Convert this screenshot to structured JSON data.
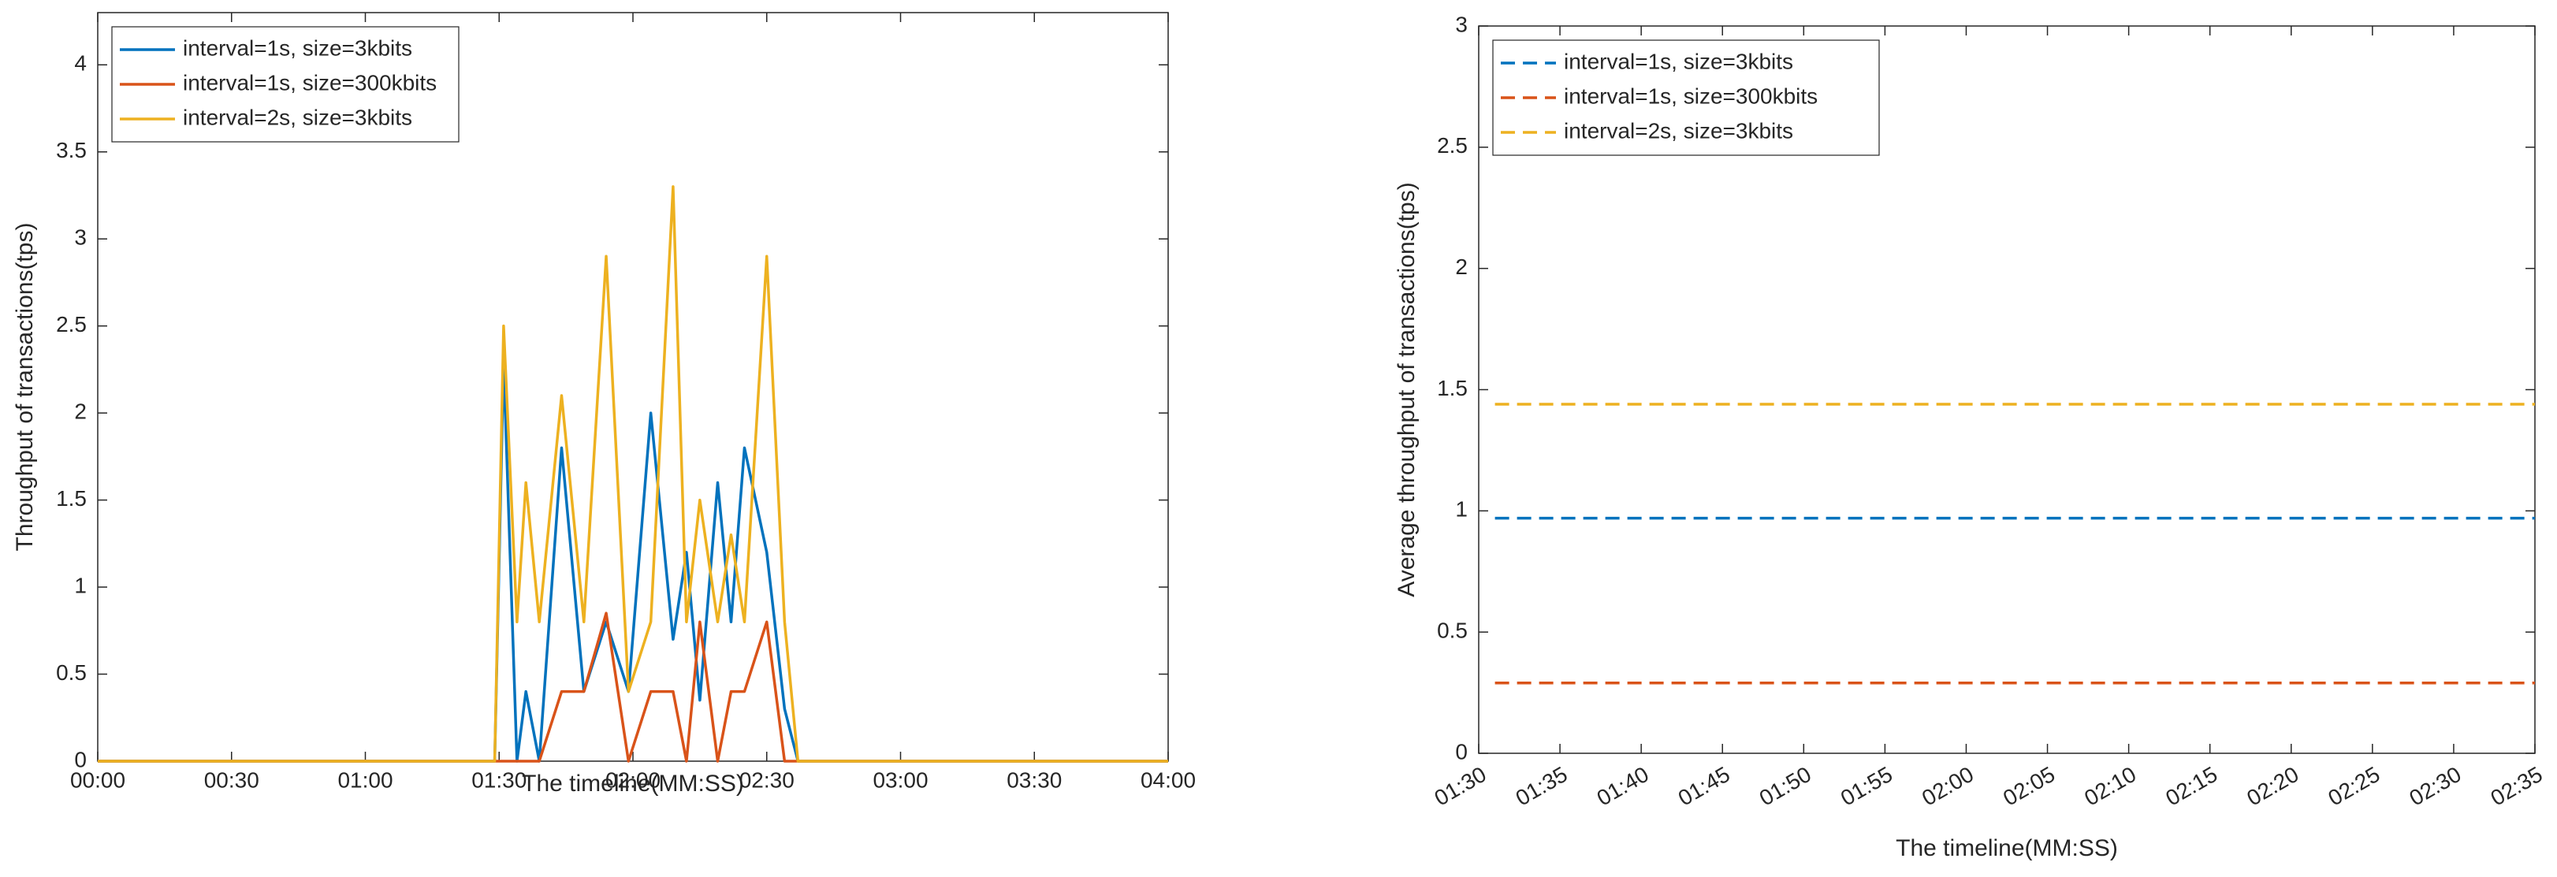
{
  "chart_data": [
    {
      "type": "line",
      "x_label": "The timeline(MM:SS)",
      "y_label": "Throughput of transactions(tps)",
      "x": [
        0,
        89,
        91,
        94,
        96,
        99,
        104,
        109,
        114,
        119,
        124,
        129,
        132,
        135,
        139,
        142,
        145,
        150,
        154,
        157,
        240
      ],
      "series": [
        {
          "name": "interval=1s, size=3kbits",
          "color": "#0072BD",
          "line_style": "solid",
          "values": [
            0,
            0,
            2.3,
            0,
            0.4,
            0,
            1.8,
            0.4,
            0.8,
            0.4,
            2.0,
            0.7,
            1.2,
            0.35,
            1.6,
            0.8,
            1.8,
            1.2,
            0.3,
            0,
            0
          ]
        },
        {
          "name": "interval=1s, size=300kbits",
          "color": "#D95319",
          "line_style": "solid",
          "values": [
            0,
            0,
            0,
            0,
            0,
            0,
            0.4,
            0.4,
            0.85,
            0,
            0.4,
            0.4,
            0,
            0.8,
            0,
            0.4,
            0.4,
            0.8,
            0,
            0,
            0
          ]
        },
        {
          "name": "interval=2s, size=3kbits",
          "color": "#EDB120",
          "line_style": "solid",
          "values": [
            0,
            0,
            2.5,
            0.8,
            1.6,
            0.8,
            2.1,
            0.8,
            2.9,
            0.4,
            0.8,
            3.3,
            0.8,
            1.5,
            0.8,
            1.3,
            0.8,
            2.9,
            0.8,
            0,
            0
          ]
        }
      ],
      "xlim": [
        0,
        240
      ],
      "xticks": [
        {
          "value": 0,
          "label": "00:00"
        },
        {
          "value": 30,
          "label": "00:30"
        },
        {
          "value": 60,
          "label": "01:00"
        },
        {
          "value": 90,
          "label": "01:30"
        },
        {
          "value": 120,
          "label": "02:00"
        },
        {
          "value": 150,
          "label": "02:30"
        },
        {
          "value": 180,
          "label": "03:00"
        },
        {
          "value": 210,
          "label": "03:30"
        },
        {
          "value": 240,
          "label": "04:00"
        }
      ],
      "ylim": [
        0,
        4.3
      ],
      "yticks": [
        0,
        0.5,
        1,
        1.5,
        2,
        2.5,
        3,
        3.5,
        4
      ],
      "legend": "upper left"
    },
    {
      "type": "line",
      "x_label": "The timeline(MM:SS)",
      "y_label": "Average throughput of transactions(tps)",
      "x": [
        91,
        155
      ],
      "series": [
        {
          "name": "interval=1s, size=3kbits",
          "color": "#0072BD",
          "line_style": "dashed",
          "values": [
            0.97,
            0.97
          ]
        },
        {
          "name": "interval=1s, size=300kbits",
          "color": "#D95319",
          "line_style": "dashed",
          "values": [
            0.29,
            0.29
          ]
        },
        {
          "name": "interval=2s, size=3kbits",
          "color": "#EDB120",
          "line_style": "dashed",
          "values": [
            1.44,
            1.44
          ]
        }
      ],
      "xlim": [
        90,
        155
      ],
      "xticks": [
        {
          "value": 90,
          "label": "01:30"
        },
        {
          "value": 95,
          "label": "01:35"
        },
        {
          "value": 100,
          "label": "01:40"
        },
        {
          "value": 105,
          "label": "01:45"
        },
        {
          "value": 110,
          "label": "01:50"
        },
        {
          "value": 115,
          "label": "01:55"
        },
        {
          "value": 120,
          "label": "02:00"
        },
        {
          "value": 125,
          "label": "02:05"
        },
        {
          "value": 130,
          "label": "02:10"
        },
        {
          "value": 135,
          "label": "02:15"
        },
        {
          "value": 140,
          "label": "02:20"
        },
        {
          "value": 145,
          "label": "02:25"
        },
        {
          "value": 150,
          "label": "02:30"
        },
        {
          "value": 155,
          "label": "02:35"
        }
      ],
      "ylim": [
        0,
        3
      ],
      "yticks": [
        0,
        0.5,
        1,
        1.5,
        2,
        2.5,
        3
      ],
      "legend": "upper left"
    }
  ]
}
